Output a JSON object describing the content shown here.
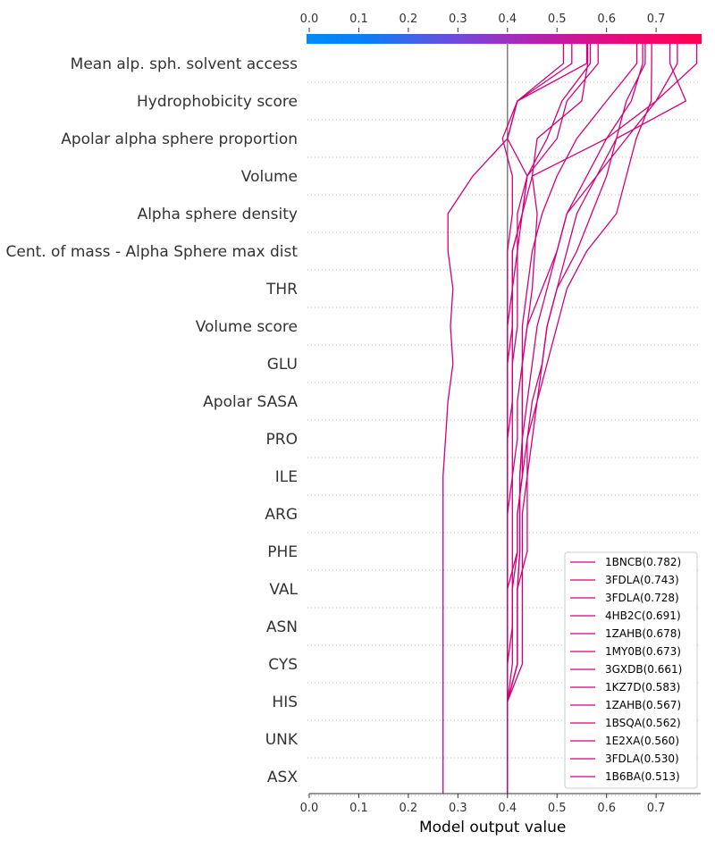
{
  "chart_data": {
    "type": "line",
    "subtype": "shap-decision-plot",
    "xlabel": "Model output value",
    "xlim": [
      0.0,
      0.79
    ],
    "base_value": 0.4,
    "x_ticks": [
      "0.0",
      "0.1",
      "0.2",
      "0.3",
      "0.4",
      "0.5",
      "0.6",
      "0.7"
    ],
    "x_tick_values": [
      0.0,
      0.1,
      0.2,
      0.3,
      0.4,
      0.5,
      0.6,
      0.7
    ],
    "features": [
      "Mean alp. sph. solvent access",
      "Hydrophobicity score",
      "Apolar alpha sphere proportion",
      "Volume",
      "Alpha sphere density",
      "Cent. of mass - Alpha Sphere max dist",
      "THR",
      "Volume score",
      "GLU",
      "Apolar SASA",
      "PRO",
      "ILE",
      "ARG",
      "PHE",
      "VAL",
      "ASN",
      "CYS",
      "HIS",
      "UNK",
      "ASX"
    ],
    "grid": "dotted horizontal",
    "legend_position": "bottom-right",
    "colormap": [
      "#008bfb",
      "#ff0051"
    ],
    "line_color": "#d4007a",
    "series": [
      {
        "name": "1BNCB(0.782)",
        "final": 0.782,
        "values": [
          0.4,
          0.4,
          0.4,
          0.42,
          0.42,
          0.42,
          0.425,
          0.425,
          0.425,
          0.43,
          0.43,
          0.43,
          0.44,
          0.45,
          0.455,
          0.46,
          0.45,
          0.6,
          0.7,
          0.782
        ]
      },
      {
        "name": "3FDLA(0.743)",
        "final": 0.743,
        "values": [
          0.4,
          0.4,
          0.4,
          0.42,
          0.42,
          0.42,
          0.425,
          0.425,
          0.425,
          0.43,
          0.43,
          0.43,
          0.44,
          0.47,
          0.5,
          0.52,
          0.58,
          0.64,
          0.7,
          0.743
        ]
      },
      {
        "name": "3FDLA(0.728)",
        "final": 0.728,
        "values": [
          0.4,
          0.4,
          0.4,
          0.43,
          0.43,
          0.43,
          0.43,
          0.43,
          0.44,
          0.44,
          0.46,
          0.47,
          0.48,
          0.5,
          0.52,
          0.54,
          0.58,
          0.62,
          0.76,
          0.728
        ]
      },
      {
        "name": "4HB2C(0.691)",
        "final": 0.691,
        "values": [
          0.4,
          0.4,
          0.4,
          0.42,
          0.42,
          0.42,
          0.44,
          0.44,
          0.44,
          0.45,
          0.46,
          0.48,
          0.5,
          0.52,
          0.56,
          0.62,
          0.64,
          0.66,
          0.69,
          0.691
        ]
      },
      {
        "name": "1ZAHB(0.678)",
        "final": 0.678,
        "values": [
          0.4,
          0.4,
          0.4,
          0.41,
          0.41,
          0.41,
          0.42,
          0.42,
          0.43,
          0.44,
          0.45,
          0.47,
          0.48,
          0.5,
          0.54,
          0.57,
          0.6,
          0.62,
          0.64,
          0.678
        ]
      },
      {
        "name": "1MY0B(0.673)",
        "final": 0.673,
        "values": [
          0.4,
          0.4,
          0.4,
          0.4,
          0.4,
          0.4,
          0.42,
          0.42,
          0.43,
          0.43,
          0.44,
          0.45,
          0.46,
          0.48,
          0.5,
          0.52,
          0.56,
          0.6,
          0.65,
          0.673
        ]
      },
      {
        "name": "3GXDB(0.661)",
        "final": 0.661,
        "values": [
          0.4,
          0.4,
          0.4,
          0.4,
          0.41,
          0.41,
          0.41,
          0.41,
          0.41,
          0.42,
          0.42,
          0.43,
          0.43,
          0.44,
          0.45,
          0.47,
          0.5,
          0.54,
          0.6,
          0.661
        ]
      },
      {
        "name": "1KZ7D(0.583)",
        "final": 0.583,
        "values": [
          0.4,
          0.4,
          0.4,
          0.4,
          0.4,
          0.4,
          0.4,
          0.4,
          0.41,
          0.41,
          0.41,
          0.41,
          0.42,
          0.42,
          0.42,
          0.42,
          0.44,
          0.5,
          0.52,
          0.583
        ]
      },
      {
        "name": "1ZAHB(0.567)",
        "final": 0.567,
        "values": [
          0.4,
          0.4,
          0.4,
          0.4,
          0.4,
          0.4,
          0.4,
          0.4,
          0.4,
          0.4,
          0.41,
          0.41,
          0.41,
          0.41,
          0.42,
          0.43,
          0.44,
          0.48,
          0.51,
          0.567
        ]
      },
      {
        "name": "1BSQA(0.562)",
        "final": 0.562,
        "values": [
          0.4,
          0.4,
          0.4,
          0.4,
          0.4,
          0.4,
          0.4,
          0.4,
          0.4,
          0.4,
          0.4,
          0.4,
          0.41,
          0.41,
          0.41,
          0.43,
          0.45,
          0.46,
          0.55,
          0.562
        ]
      },
      {
        "name": "1E2XA(0.560)",
        "final": 0.56,
        "values": [
          0.4,
          0.4,
          0.4,
          0.4,
          0.4,
          0.4,
          0.4,
          0.4,
          0.4,
          0.4,
          0.4,
          0.4,
          0.4,
          0.41,
          0.41,
          0.43,
          0.44,
          0.4,
          0.42,
          0.56
        ]
      },
      {
        "name": "3FDLA(0.530)",
        "final": 0.53,
        "values": [
          0.4,
          0.4,
          0.4,
          0.4,
          0.4,
          0.4,
          0.4,
          0.4,
          0.4,
          0.4,
          0.4,
          0.4,
          0.4,
          0.4,
          0.4,
          0.41,
          0.41,
          0.39,
          0.42,
          0.53
        ]
      },
      {
        "name": "1B6BA(0.513)",
        "final": 0.513,
        "values": [
          0.27,
          0.27,
          0.27,
          0.27,
          0.27,
          0.27,
          0.27,
          0.27,
          0.27,
          0.275,
          0.28,
          0.29,
          0.285,
          0.29,
          0.28,
          0.28,
          0.33,
          0.4,
          0.42,
          0.513
        ]
      }
    ]
  }
}
